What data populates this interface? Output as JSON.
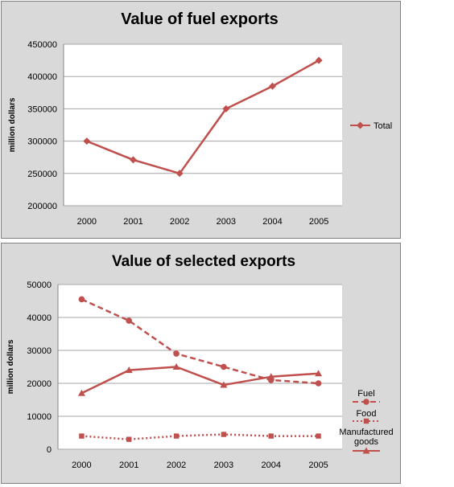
{
  "chart_data": [
    {
      "type": "line",
      "title": "Value of fuel exports",
      "xlabel": "",
      "ylabel": "million dollars",
      "x": [
        "2000",
        "2001",
        "2002",
        "2003",
        "2004",
        "2005"
      ],
      "ylim": [
        200000,
        450000
      ],
      "yticks": [
        200000,
        250000,
        300000,
        350000,
        400000,
        450000
      ],
      "grid": true,
      "legend_position": "right",
      "series": [
        {
          "name": "Total",
          "values": [
            300000,
            271000,
            250000,
            350000,
            385000,
            425000
          ],
          "color": "#c0504d",
          "style": "solid",
          "marker": "diamond"
        }
      ]
    },
    {
      "type": "line",
      "title": "Value of selected exports",
      "xlabel": "",
      "ylabel": "million dollars",
      "x": [
        "2000",
        "2001",
        "2002",
        "2003",
        "2004",
        "2005"
      ],
      "ylim": [
        0,
        50000
      ],
      "yticks": [
        0,
        10000,
        20000,
        30000,
        40000,
        50000
      ],
      "grid": true,
      "legend_position": "right",
      "series": [
        {
          "name": "Fuel",
          "values": [
            45500,
            39000,
            29000,
            25000,
            21000,
            20000
          ],
          "color": "#c0504d",
          "style": "dashed",
          "marker": "circle"
        },
        {
          "name": "Food",
          "values": [
            4000,
            3000,
            4000,
            4500,
            4000,
            4000
          ],
          "color": "#c0504d",
          "style": "dotted",
          "marker": "square"
        },
        {
          "name": "Manufactured goods",
          "values": [
            17000,
            24000,
            25000,
            19500,
            22000,
            23000
          ],
          "color": "#c0504d",
          "style": "solid",
          "marker": "triangle"
        }
      ]
    }
  ]
}
